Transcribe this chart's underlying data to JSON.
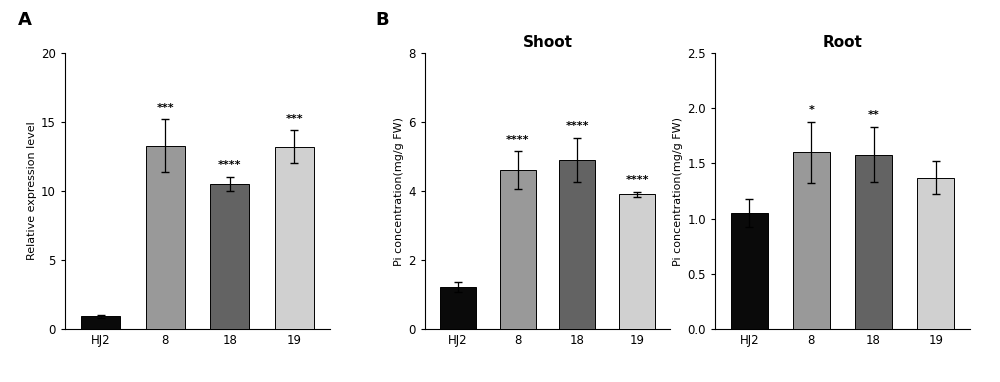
{
  "panel_A": {
    "categories": [
      "HJ2",
      "8",
      "18",
      "19"
    ],
    "values": [
      0.9,
      13.3,
      10.5,
      13.2
    ],
    "errors": [
      0.1,
      1.9,
      0.5,
      1.2
    ],
    "colors": [
      "#0a0a0a",
      "#999999",
      "#636363",
      "#d0d0d0"
    ],
    "ylabel": "Relative expression level",
    "ylim": [
      0,
      20
    ],
    "yticks": [
      0,
      5,
      10,
      15,
      20
    ],
    "significance": [
      "",
      "***",
      "****",
      "***"
    ]
  },
  "panel_B_shoot": {
    "title": "Shoot",
    "categories": [
      "HJ2",
      "8",
      "18",
      "19"
    ],
    "values": [
      1.2,
      4.6,
      4.9,
      3.9
    ],
    "errors": [
      0.15,
      0.55,
      0.65,
      0.08
    ],
    "colors": [
      "#0a0a0a",
      "#999999",
      "#636363",
      "#d0d0d0"
    ],
    "ylabel": "Pi concentration(mg/g FW)",
    "ylim": [
      0,
      8
    ],
    "yticks": [
      0,
      2,
      4,
      6,
      8
    ],
    "significance": [
      "",
      "****",
      "****",
      "****"
    ]
  },
  "panel_B_root": {
    "title": "Root",
    "categories": [
      "HJ2",
      "8",
      "18",
      "19"
    ],
    "values": [
      1.05,
      1.6,
      1.58,
      1.37
    ],
    "errors": [
      0.13,
      0.28,
      0.25,
      0.15
    ],
    "colors": [
      "#0a0a0a",
      "#999999",
      "#636363",
      "#d0d0d0"
    ],
    "ylabel": "Pi concentration(mg/g FW)",
    "ylim": [
      0,
      2.5
    ],
    "yticks": [
      0.0,
      0.5,
      1.0,
      1.5,
      2.0,
      2.5
    ],
    "significance": [
      "",
      "*",
      "**",
      ""
    ]
  },
  "background_color": "#ffffff",
  "bar_width": 0.6,
  "fontsize_ylabel": 8,
  "fontsize_tick": 8.5,
  "fontsize_sig": 8,
  "fontsize_title": 11,
  "fontsize_panel_label": 13
}
